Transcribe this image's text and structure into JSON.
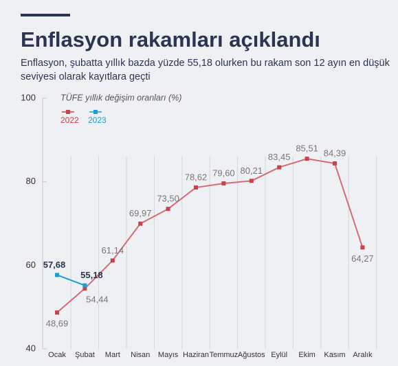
{
  "chart_data": {
    "type": "line",
    "title": "Enflasyon rakamları açıklandı",
    "subtitle": "Enflasyon, şubatta yıllık bazda yüzde 55,18 olurken bu rakam son 12 ayın en düşük seviyesi olarak kayıtlara geçti",
    "y_label": "TÜFE yıllık değişim oranları (%)",
    "categories": [
      "Ocak",
      "Şubat",
      "Mart",
      "Nisan",
      "Mayıs",
      "Haziran",
      "Temmuz",
      "Ağustos",
      "Eylül",
      "Ekim",
      "Kasım",
      "Aralık"
    ],
    "series": [
      {
        "name": "2022",
        "color": "#c8414b",
        "values": [
          48.69,
          54.44,
          61.14,
          69.97,
          73.5,
          78.62,
          79.6,
          80.21,
          83.45,
          85.51,
          84.39,
          64.27
        ],
        "value_labels": [
          "48,69",
          "54,44",
          "61,14",
          "69,97",
          "73,50",
          "78,62",
          "79,60",
          "80,21",
          "83,45",
          "85,51",
          "84,39",
          "64,27"
        ]
      },
      {
        "name": "2023",
        "color": "#1b9ed8",
        "values": [
          57.68,
          55.18,
          null,
          null,
          null,
          null,
          null,
          null,
          null,
          null,
          null,
          null
        ],
        "value_labels": [
          "57,68",
          "55,18",
          null,
          null,
          null,
          null,
          null,
          null,
          null,
          null,
          null,
          null
        ]
      }
    ],
    "ylim": [
      40,
      100
    ],
    "yticks": [
      40,
      60,
      80,
      100
    ],
    "grid": true
  }
}
